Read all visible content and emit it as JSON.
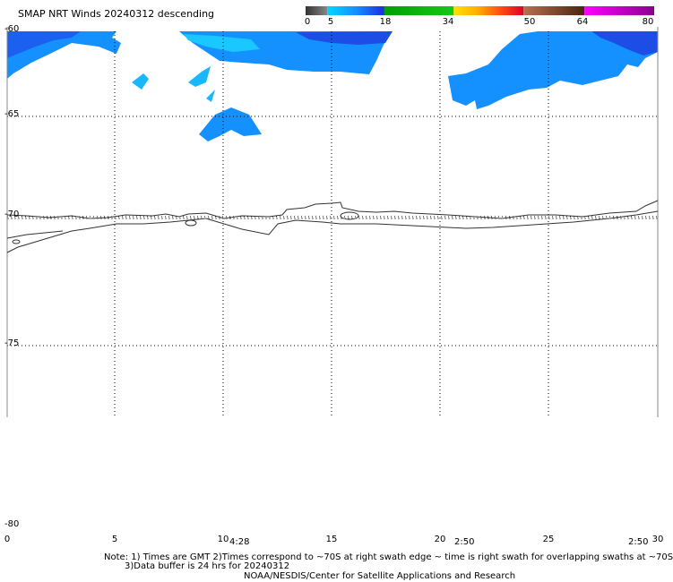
{
  "title": "SMAP NRT Winds  20240312 descending",
  "colorbar": {
    "labels": [
      {
        "text": "0",
        "value": 0
      },
      {
        "text": "5",
        "value": 5
      },
      {
        "text": "18",
        "value": 18
      },
      {
        "text": "34",
        "value": 34
      },
      {
        "text": "50",
        "value": 50
      },
      {
        "text": "64",
        "value": 64
      },
      {
        "text": "80",
        "value": 80
      }
    ],
    "segments": [
      {
        "from": 0,
        "to": 5,
        "color": "#555555"
      },
      {
        "from": 5,
        "to": 18,
        "color": "#1e6bff"
      },
      {
        "from": 18,
        "to": 34,
        "color": "#12b012"
      },
      {
        "from": 34,
        "to": 50,
        "color": "#ff6a10"
      },
      {
        "from": 50,
        "to": 64,
        "color": "#8b4513"
      },
      {
        "from": 64,
        "to": 80,
        "color": "#c000c0"
      }
    ]
  },
  "map": {
    "lat_labels": [
      {
        "text": "-60",
        "lat": -60
      },
      {
        "text": "-65",
        "lat": -65
      },
      {
        "text": "-70",
        "lat": -70
      },
      {
        "text": "-75",
        "lat": -75
      },
      {
        "text": "-80",
        "lat": -80
      }
    ],
    "lon_labels": [
      {
        "text": "0",
        "lon": 0
      },
      {
        "text": "5",
        "lon": 5
      },
      {
        "text": "10",
        "lon": 10
      },
      {
        "text": "15",
        "lon": 15
      },
      {
        "text": "20",
        "lon": 20
      },
      {
        "text": "25",
        "lon": 25
      },
      {
        "text": "30",
        "lon": 30
      }
    ],
    "swath_times": [
      "4:28",
      "2:50",
      "2:50"
    ],
    "wind_color": "#1590ff"
  },
  "notes": {
    "line1": "Note: 1) Times are GMT 2)Times correspond to ~70S at right swath edge ~ time is right swath for overlapping swaths at ~70S",
    "line2": "3)Data buffer is 24 hrs for 20240312",
    "line3": "NOAA/NESDIS/Center for Satellite Applications and Research"
  }
}
